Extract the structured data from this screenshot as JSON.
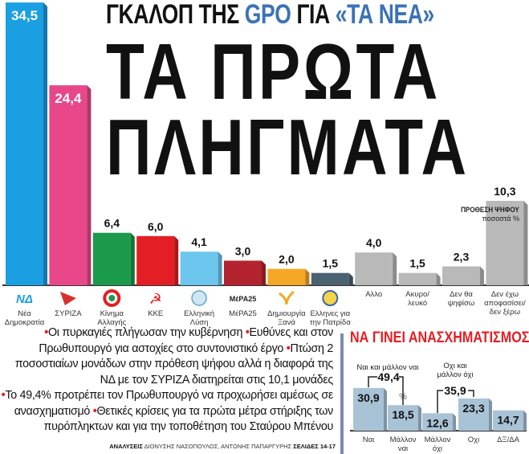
{
  "header": {
    "kicker_part1": "ΓΚΑΛΟΠ ΤΗΣ ",
    "kicker_brand": "GPO",
    "kicker_part2": " ΓΙΑ ",
    "kicker_paper": "«ΤΑ ΝΕΑ»",
    "headline_line1": "ΤΑ ΠΡΩΤΑ",
    "headline_line2": "ΠΛΗΓΜΑΤΑ"
  },
  "summary": {
    "items": [
      "Οι πυρκαγιές πλήγωσαν την κυβέρνηση",
      "Ευθύνες και στον Πρωθυπουργό για αστοχίες στο συντονιστικό έργο",
      "Πτώση 2 ποσοστιαίων μονάδων στην πρόθεση ψήφου αλλά η διαφορά της ΝΔ με τον ΣΥΡΙΖΑ διατηρείται στις 10,1 μονάδες",
      "Το 49,4% προτρέπει τον Πρωθυπουργό να προχωρήσει αμέσως σε ανασχηματισμό",
      "Θετικές κρίσεις για τα πρώτα μέτρα στήριξης των πυρόπληκτων και για την τοποθέτηση του Σταύρου Μπένου"
    ],
    "bullet": "•",
    "credits_label": "ΑΝΑΛΥΣΕΙΣ",
    "credits_names": " ΔΙΟΝΥΣΗΣ ΝΑΣΟΠΟΥΛΟΣ, ΑΝΤΩΝΗΣ ΠΑΠΑΡΓΥΡΗΣ ",
    "credits_pages": "ΣΕΛΙΔΕΣ 14-17"
  },
  "chart_data": [
    {
      "type": "bar",
      "title": "ΠΡΟΘΕΣΗ ΨΗΦΟΥ",
      "subtitle": "ποσοστά %",
      "categories": [
        "Νέα Δημοκρατία",
        "ΣΥΡΙΖΑ",
        "Κίνημα Αλλαγής",
        "ΚΚΕ",
        "Ελληνική Λύση",
        "ΜέΡΑ25",
        "Δημιουργία Ξανά",
        "Ελληνες για την Πατρίδα",
        "Αλλο",
        "Ακυρο/ λευκό",
        "Δεν θα ψηφίσω",
        "Δεν έχω αποφασίσει/ δεν ξέρω"
      ],
      "values": [
        34.5,
        24.4,
        6.4,
        6.0,
        4.1,
        3.0,
        2.0,
        1.5,
        4.0,
        1.5,
        2.3,
        10.3
      ],
      "value_labels": [
        "34,5",
        "24,4",
        "6,4",
        "6,0",
        "4,1",
        "3,0",
        "2,0",
        "1,5",
        "4,0",
        "1,5",
        "2,3",
        "10,3"
      ],
      "colors": [
        "#1aa0e2",
        "#e8488a",
        "#1b9a4b",
        "#e31e24",
        "#6dc6ee",
        "#b3232f",
        "#f5a826",
        "#4c6271",
        "#b9b9b9",
        "#b9b9b9",
        "#b9b9b9",
        "#b9b9b9"
      ],
      "icons": [
        "nd-logo-icon",
        "syriza-logo-icon",
        "kinal-logo-icon",
        "kke-hammer-sickle-icon",
        "elliniki-lysi-logo-icon",
        "mera25-logo-icon",
        "dimiourgia-xana-logo-icon",
        "ellines-logo-icon",
        null,
        null,
        null,
        null
      ],
      "mera25_logo_text": "ΜέΡΑ25",
      "nd_logo_text": "ΝΔ",
      "ylim": [
        0,
        35
      ],
      "grid": false
    },
    {
      "type": "bar",
      "title": "ΝΑ ΓΙΝΕΙ ΑΝΑΣΧΗΜΑΤΙΣΜΟΣ;",
      "categories": [
        "Ναι",
        "Μάλλον ναι",
        "Μάλλον όχι",
        "Οχι",
        "ΔΞ/ΔΑ"
      ],
      "values": [
        30.9,
        18.5,
        12.6,
        23.3,
        14.7
      ],
      "value_labels": [
        "30,9",
        "18,5",
        "12,6",
        "23,3",
        "14,7"
      ],
      "unit_label": "%",
      "color": "#a9c3d6",
      "groups": [
        {
          "label": "Ναι και μάλλον ναι",
          "total": "49,4"
        },
        {
          "label_line1": "Οχι και",
          "label_line2": "μάλλον όχι",
          "total": "35,9"
        }
      ],
      "ylim": [
        0,
        35
      ],
      "grid": false
    }
  ]
}
